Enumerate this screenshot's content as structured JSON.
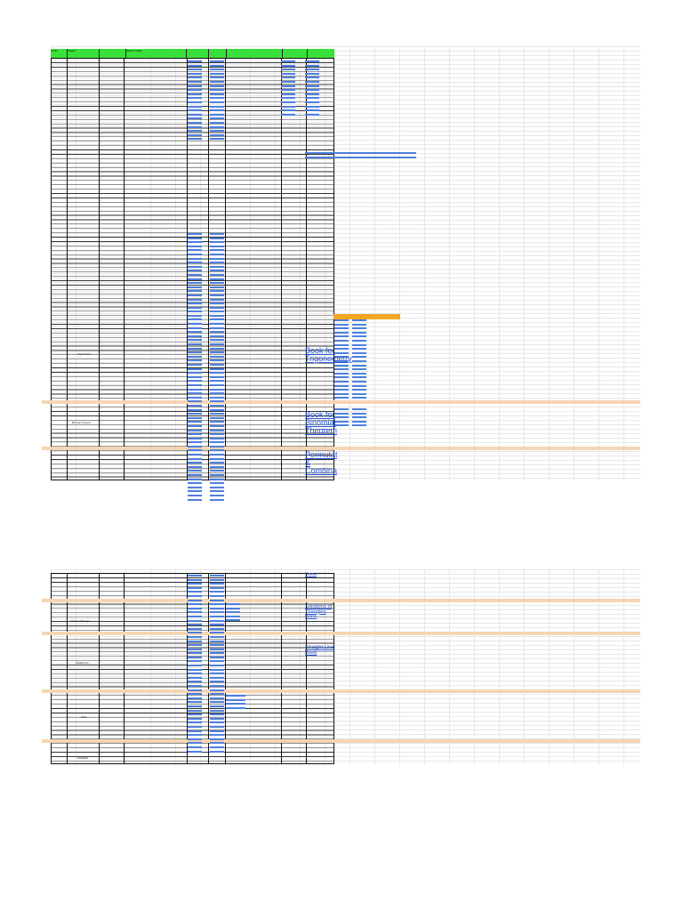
{
  "sheet": {
    "header": [
      "Sr. No.",
      "Chapter",
      "",
      "Name of Video",
      "",
      "",
      "",
      "",
      ""
    ],
    "page1_topics": [
      "Trigonometry",
      "Binomial Theorem"
    ],
    "page2_topics": [
      "Solution of Triangle",
      "Straight Line",
      "Circle",
      "Probability"
    ],
    "book_links": {
      "trigonometry": "Book for Trigonometry",
      "binomial": "Book for Binomial Theorem",
      "permutation": "Permutation & Combination",
      "page2_top": "Book",
      "solutions": "Solutions of Triangles Book",
      "straight_line": "Straight Line Book"
    }
  },
  "colors": {
    "header_bg": "#39e039",
    "band": "#f6d5b3",
    "link": "#2554d6",
    "highlight": "#f5a623",
    "grid": "#e7e7e7"
  }
}
